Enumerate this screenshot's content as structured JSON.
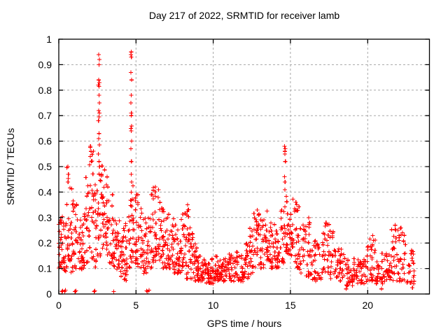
{
  "figure": {
    "title": "Day 217 of 2022, SRMTID for receiver lamb"
  },
  "chart_data": {
    "type": "scatter",
    "title": "Day 217 of 2022, SRMTID for receiver lamb",
    "xlabel": "GPS time / hours",
    "ylabel": "SRMTID / TECUs",
    "xlim": [
      0,
      24
    ],
    "ylim": [
      0,
      1
    ],
    "x_ticks": [
      0,
      5,
      10,
      15,
      20
    ],
    "y_ticks": [
      0,
      0.1,
      0.2,
      0.3,
      0.4,
      0.5,
      0.6,
      0.7,
      0.8,
      0.9,
      1
    ],
    "grid": true,
    "grid_x": [
      5,
      10,
      15,
      20
    ],
    "grid_y": [
      0.1,
      0.2,
      0.3,
      0.4,
      0.5,
      0.6,
      0.7,
      0.8,
      0.9
    ],
    "legend": "none",
    "marker": "plus",
    "marker_color": "#ff0000",
    "grid_color": "#a8a8a8",
    "axis_color": "#000000",
    "series_name": "SRMTID",
    "envelope_bins": {
      "columns": [
        "t_start_h",
        "t_end_h",
        "v_min_TECU",
        "v_max_TECU",
        "n_points"
      ],
      "rows": [
        [
          0.0,
          0.25,
          0.1,
          0.32,
          22
        ],
        [
          0.25,
          0.5,
          0.08,
          0.3,
          20
        ],
        [
          0.5,
          0.75,
          0.1,
          0.5,
          20
        ],
        [
          0.75,
          1.0,
          0.08,
          0.42,
          20
        ],
        [
          1.0,
          1.25,
          0.1,
          0.36,
          18
        ],
        [
          1.25,
          1.5,
          0.08,
          0.3,
          18
        ],
        [
          1.5,
          1.75,
          0.1,
          0.34,
          18
        ],
        [
          1.75,
          2.0,
          0.12,
          0.46,
          18
        ],
        [
          2.0,
          2.25,
          0.14,
          0.58,
          20
        ],
        [
          2.25,
          2.5,
          0.1,
          0.44,
          18
        ],
        [
          2.5,
          2.75,
          0.15,
          0.48,
          20
        ],
        [
          2.75,
          3.0,
          0.18,
          0.56,
          20
        ],
        [
          3.0,
          3.25,
          0.15,
          0.47,
          20
        ],
        [
          3.25,
          3.5,
          0.12,
          0.4,
          18
        ],
        [
          3.5,
          3.75,
          0.1,
          0.35,
          18
        ],
        [
          3.75,
          4.0,
          0.08,
          0.3,
          18
        ],
        [
          4.0,
          4.25,
          0.05,
          0.26,
          18
        ],
        [
          4.25,
          4.5,
          0.05,
          0.28,
          18
        ],
        [
          4.5,
          4.75,
          0.1,
          0.38,
          20
        ],
        [
          4.75,
          5.0,
          0.12,
          0.45,
          20
        ],
        [
          5.0,
          5.25,
          0.1,
          0.4,
          18
        ],
        [
          5.25,
          5.5,
          0.1,
          0.36,
          18
        ],
        [
          5.5,
          5.75,
          0.08,
          0.3,
          18
        ],
        [
          5.75,
          6.0,
          0.1,
          0.32,
          18
        ],
        [
          6.0,
          6.25,
          0.12,
          0.42,
          18
        ],
        [
          6.25,
          6.5,
          0.12,
          0.4,
          18
        ],
        [
          6.5,
          6.75,
          0.12,
          0.38,
          18
        ],
        [
          6.75,
          7.0,
          0.1,
          0.35,
          18
        ],
        [
          7.0,
          7.25,
          0.1,
          0.33,
          18
        ],
        [
          7.25,
          7.5,
          0.08,
          0.3,
          18
        ],
        [
          7.5,
          7.75,
          0.08,
          0.28,
          18
        ],
        [
          7.75,
          8.0,
          0.08,
          0.3,
          18
        ],
        [
          8.0,
          8.25,
          0.08,
          0.32,
          18
        ],
        [
          8.25,
          8.5,
          0.06,
          0.35,
          18
        ],
        [
          8.5,
          8.75,
          0.06,
          0.24,
          18
        ],
        [
          8.75,
          9.0,
          0.05,
          0.2,
          18
        ],
        [
          9.0,
          9.25,
          0.05,
          0.16,
          18
        ],
        [
          9.25,
          9.5,
          0.04,
          0.14,
          18
        ],
        [
          9.5,
          9.75,
          0.04,
          0.13,
          18
        ],
        [
          9.75,
          10.0,
          0.04,
          0.14,
          18
        ],
        [
          10.0,
          10.5,
          0.05,
          0.15,
          30
        ],
        [
          10.5,
          11.0,
          0.05,
          0.14,
          30
        ],
        [
          11.0,
          11.5,
          0.05,
          0.16,
          30
        ],
        [
          11.5,
          12.0,
          0.05,
          0.17,
          30
        ],
        [
          12.0,
          12.3,
          0.06,
          0.2,
          20
        ],
        [
          12.3,
          12.6,
          0.08,
          0.26,
          20
        ],
        [
          12.6,
          13.0,
          0.1,
          0.33,
          25
        ],
        [
          13.0,
          13.3,
          0.1,
          0.3,
          20
        ],
        [
          13.3,
          13.7,
          0.12,
          0.33,
          25
        ],
        [
          13.7,
          14.0,
          0.1,
          0.28,
          20
        ],
        [
          14.0,
          14.3,
          0.1,
          0.3,
          20
        ],
        [
          14.3,
          14.6,
          0.12,
          0.34,
          20
        ],
        [
          14.6,
          14.9,
          0.15,
          0.4,
          20
        ],
        [
          14.9,
          15.2,
          0.15,
          0.38,
          22
        ],
        [
          15.2,
          15.6,
          0.1,
          0.36,
          24
        ],
        [
          15.6,
          16.0,
          0.08,
          0.28,
          22
        ],
        [
          16.0,
          16.4,
          0.06,
          0.3,
          22
        ],
        [
          16.4,
          17.0,
          0.05,
          0.22,
          30
        ],
        [
          17.0,
          17.5,
          0.08,
          0.28,
          26
        ],
        [
          17.5,
          18.0,
          0.06,
          0.25,
          26
        ],
        [
          18.0,
          18.5,
          0.04,
          0.2,
          26
        ],
        [
          18.5,
          19.0,
          0.03,
          0.15,
          26
        ],
        [
          19.0,
          19.5,
          0.04,
          0.14,
          26
        ],
        [
          19.5,
          20.0,
          0.04,
          0.15,
          26
        ],
        [
          20.0,
          20.5,
          0.05,
          0.23,
          26
        ],
        [
          20.5,
          21.0,
          0.04,
          0.16,
          26
        ],
        [
          21.0,
          21.5,
          0.05,
          0.18,
          26
        ],
        [
          21.5,
          22.0,
          0.05,
          0.26,
          26
        ],
        [
          22.0,
          22.5,
          0.05,
          0.27,
          26
        ],
        [
          22.5,
          23.0,
          0.04,
          0.18,
          24
        ]
      ]
    },
    "peak_points": [
      [
        0.58,
        0.5
      ],
      [
        0.62,
        0.47
      ],
      [
        0.6,
        0.44
      ],
      [
        2.58,
        0.94
      ],
      [
        2.62,
        0.92
      ],
      [
        2.6,
        0.9
      ],
      [
        2.59,
        0.84
      ],
      [
        2.62,
        0.83
      ],
      [
        2.57,
        0.82
      ],
      [
        2.61,
        0.815
      ],
      [
        2.6,
        0.78
      ],
      [
        2.63,
        0.75
      ],
      [
        2.58,
        0.72
      ],
      [
        2.62,
        0.71
      ],
      [
        2.6,
        0.695
      ],
      [
        2.57,
        0.68
      ],
      [
        2.61,
        0.63
      ],
      [
        2.59,
        0.61
      ],
      [
        2.63,
        0.585
      ],
      [
        2.56,
        0.55
      ],
      [
        2.6,
        0.52
      ],
      [
        2.64,
        0.5
      ],
      [
        2.05,
        0.58
      ],
      [
        2.08,
        0.56
      ],
      [
        2.03,
        0.54
      ],
      [
        2.1,
        0.52
      ],
      [
        4.68,
        0.95
      ],
      [
        4.66,
        0.94
      ],
      [
        4.7,
        0.93
      ],
      [
        4.67,
        0.87
      ],
      [
        4.71,
        0.84
      ],
      [
        4.69,
        0.78
      ],
      [
        4.66,
        0.75
      ],
      [
        4.7,
        0.71
      ],
      [
        4.68,
        0.7
      ],
      [
        4.72,
        0.66
      ],
      [
        4.67,
        0.65
      ],
      [
        4.69,
        0.64
      ],
      [
        4.71,
        0.6
      ],
      [
        4.66,
        0.57
      ],
      [
        4.7,
        0.52
      ],
      [
        4.68,
        0.47
      ],
      [
        4.72,
        0.44
      ],
      [
        4.69,
        0.4
      ],
      [
        6.25,
        0.42
      ],
      [
        6.45,
        0.41
      ],
      [
        8.33,
        0.35
      ],
      [
        8.37,
        0.33
      ],
      [
        8.3,
        0.31
      ],
      [
        12.85,
        0.33
      ],
      [
        12.95,
        0.31
      ],
      [
        14.62,
        0.58
      ],
      [
        14.66,
        0.57
      ],
      [
        14.64,
        0.56
      ],
      [
        14.63,
        0.55
      ],
      [
        14.67,
        0.52
      ],
      [
        14.61,
        0.46
      ],
      [
        14.65,
        0.44
      ],
      [
        14.64,
        0.41
      ],
      [
        15.35,
        0.36
      ],
      [
        15.4,
        0.35
      ],
      [
        16.18,
        0.3
      ],
      [
        16.22,
        0.28
      ],
      [
        17.3,
        0.28
      ],
      [
        20.32,
        0.23
      ],
      [
        20.38,
        0.21
      ],
      [
        21.78,
        0.27
      ],
      [
        21.82,
        0.25
      ],
      [
        22.15,
        0.26
      ],
      [
        22.25,
        0.24
      ]
    ],
    "near_zero_points": [
      [
        0.2,
        0.01
      ],
      [
        0.25,
        0.012
      ],
      [
        0.38,
        0.01
      ],
      [
        0.42,
        0.015
      ],
      [
        1.05,
        0.01
      ],
      [
        1.1,
        0.013
      ],
      [
        2.28,
        0.01
      ],
      [
        2.33,
        0.012
      ],
      [
        3.55,
        0.01
      ],
      [
        5.68,
        0.012
      ],
      [
        5.75,
        0.01
      ],
      [
        5.85,
        0.015
      ],
      [
        18.6,
        0.02
      ],
      [
        20.9,
        0.02
      ],
      [
        22.9,
        0.025
      ]
    ]
  }
}
